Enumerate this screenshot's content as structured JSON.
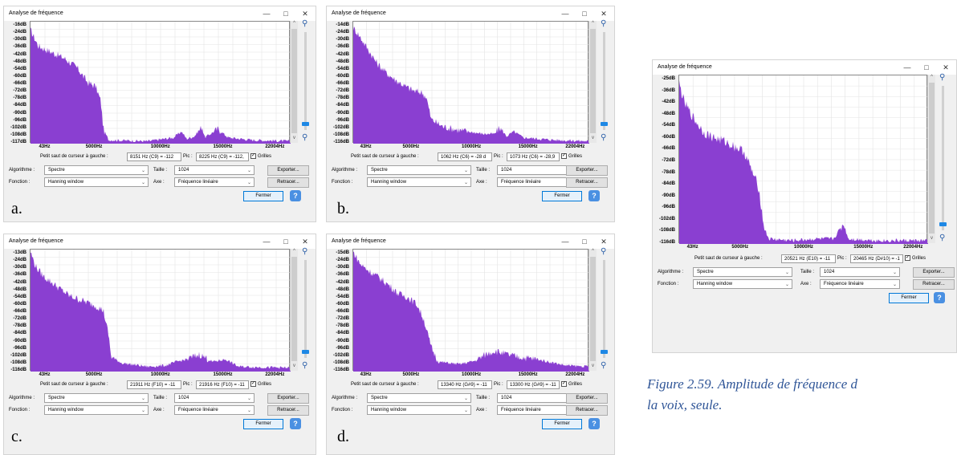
{
  "common": {
    "window_title": "Analyse de fréquence",
    "x_ticks": [
      "43Hz",
      "5000Hz",
      "10000Hz",
      "15000Hz",
      "22004Hz"
    ],
    "cursor_label": "Petit saut de curseur à gauche :",
    "pic_label": "Pic :",
    "grilles_label": "Grilles",
    "algo_label": "Algorithme :",
    "algo_value": "Spectre",
    "taille_label": "Taille :",
    "taille_value": "1024",
    "fonction_label": "Fonction :",
    "fonction_value": "Hanning window",
    "axe_label": "Axe :",
    "axe_value": "Fréquence linéaire",
    "exporter_label": "Exporter...",
    "retracer_label": "Retracer...",
    "fermer_label": "Fermer",
    "help_symbol": "?",
    "accent_color": "#8a3fd1"
  },
  "panels": [
    {
      "letter": "a.",
      "y_ticks": [
        "-16dB",
        "-24dB",
        "-30dB",
        "-36dB",
        "-42dB",
        "-48dB",
        "-54dB",
        "-60dB",
        "-66dB",
        "-72dB",
        "-78dB",
        "-84dB",
        "-90dB",
        "-96dB",
        "-102dB",
        "-108dB",
        "-117dB"
      ],
      "cursor_value": "8151 Hz (C9) = -112",
      "pic_value": "8225 Hz (C9) = -112,"
    },
    {
      "letter": "b.",
      "y_ticks": [
        "-14dB",
        "-24dB",
        "-30dB",
        "-36dB",
        "-42dB",
        "-48dB",
        "-54dB",
        "-60dB",
        "-66dB",
        "-72dB",
        "-78dB",
        "-84dB",
        "-90dB",
        "-96dB",
        "-102dB",
        "-108dB",
        "-116dB"
      ],
      "cursor_value": "1062 Hz (C6) = -28 d",
      "pic_value": "1073 Hz (C6) = -28,9"
    },
    {
      "letter": "c.",
      "y_ticks": [
        "-13dB",
        "-24dB",
        "-30dB",
        "-36dB",
        "-42dB",
        "-48dB",
        "-54dB",
        "-60dB",
        "-66dB",
        "-72dB",
        "-78dB",
        "-84dB",
        "-90dB",
        "-96dB",
        "-102dB",
        "-108dB",
        "-116dB"
      ],
      "cursor_value": "21911 Hz (F10) = -11",
      "pic_value": "21916 Hz (F10) = -11"
    },
    {
      "letter": "d.",
      "y_ticks": [
        "-15dB",
        "-24dB",
        "-30dB",
        "-36dB",
        "-42dB",
        "-48dB",
        "-54dB",
        "-60dB",
        "-66dB",
        "-72dB",
        "-78dB",
        "-84dB",
        "-90dB",
        "-96dB",
        "-102dB",
        "-108dB",
        "-116dB"
      ],
      "cursor_value": "13340 Hz (G#9) = -11",
      "pic_value": "13300 Hz (G#9) = -11"
    },
    {
      "letter": "",
      "y_ticks": [
        "-25dB",
        "-36dB",
        "-42dB",
        "-48dB",
        "-54dB",
        "-60dB",
        "-66dB",
        "-72dB",
        "-78dB",
        "-84dB",
        "-90dB",
        "-96dB",
        "-102dB",
        "-108dB",
        "-116dB"
      ],
      "cursor_value": "20521 Hz (E10) = -11",
      "pic_value": "20465 Hz (D#10) = -1"
    }
  ],
  "caption": {
    "line1": "Figure 2.59. Amplitude de fréquence d",
    "line2": "la voix, seule."
  }
}
